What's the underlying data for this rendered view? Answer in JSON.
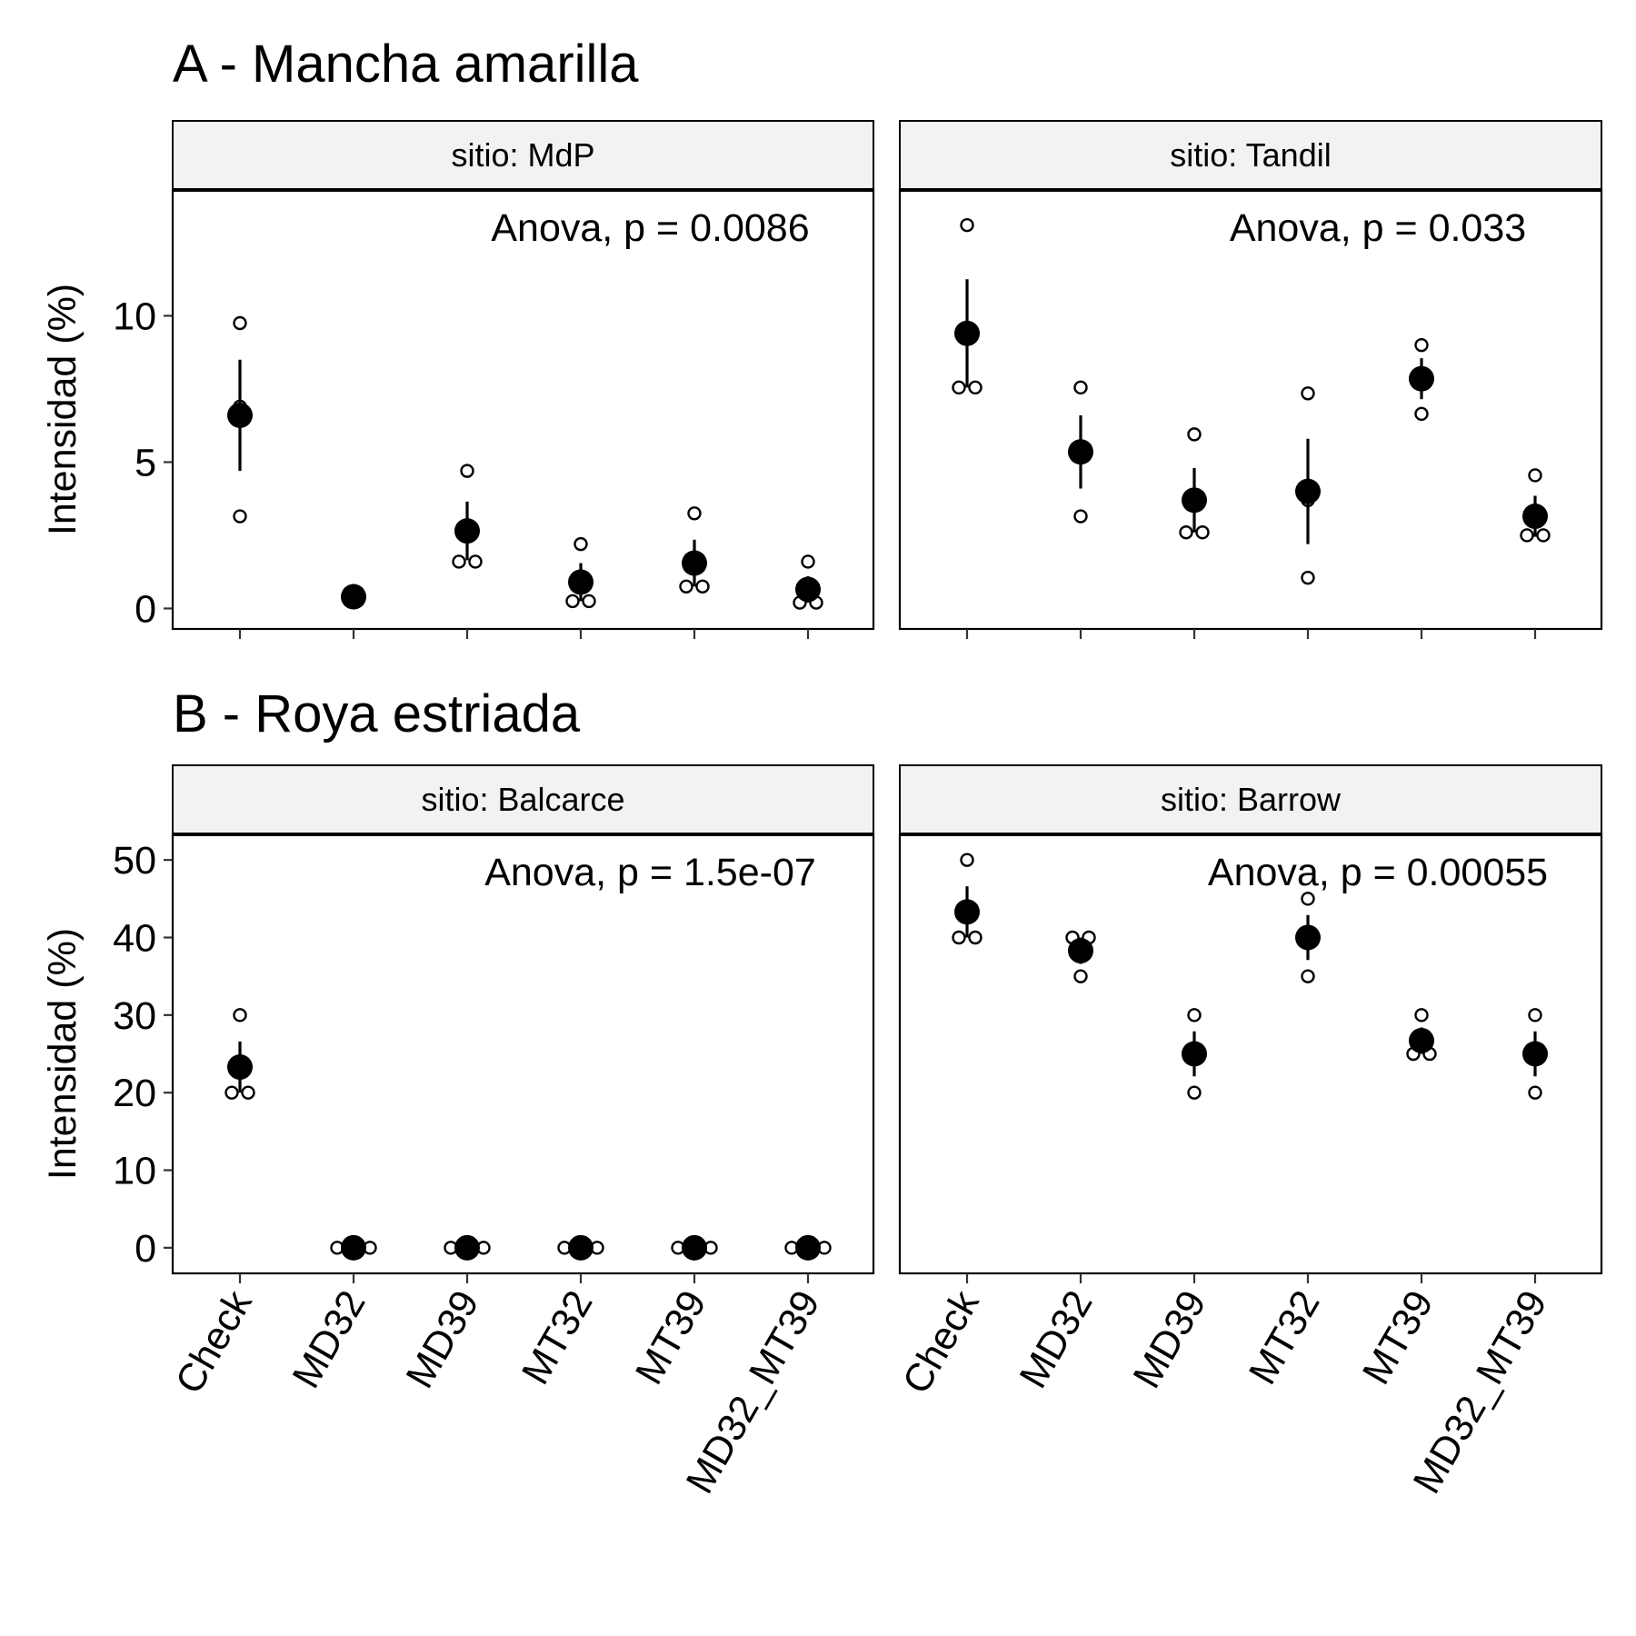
{
  "chart_data": [
    {
      "type": "scatter",
      "title": "A - Mancha amarilla",
      "ylabel": "Intensidad (%)",
      "xlabel": "",
      "categories": [
        "Check",
        "MD32",
        "MD39",
        "MT32",
        "MT39",
        "MD32_MT39"
      ],
      "ylim": [
        -0.7,
        14.3
      ],
      "yticks": [
        0,
        5,
        10
      ],
      "ytick_labels": [
        "0",
        "5",
        "10"
      ],
      "grid": false,
      "panels": [
        {
          "strip": "sitio: MdP",
          "anova": "Anova, p = 0.0086",
          "means": [
            6.6,
            0.4,
            2.65,
            0.9,
            1.55,
            0.65
          ],
          "errors": [
            1.9,
            0.15,
            1.0,
            0.65,
            0.8,
            0.45
          ],
          "points": [
            [
              9.75,
              6.9,
              3.15
            ],
            [
              0.3,
              0.5,
              0.6
            ],
            [
              4.7,
              1.6,
              1.6
            ],
            [
              2.2,
              0.25,
              0.25
            ],
            [
              3.25,
              0.75,
              0.75
            ],
            [
              1.6,
              0.2,
              0.2
            ]
          ]
        },
        {
          "strip": "sitio: Tandil",
          "anova": "Anova, p = 0.033",
          "means": [
            9.4,
            5.35,
            3.7,
            4.0,
            7.85,
            3.15
          ],
          "errors": [
            1.85,
            1.25,
            1.1,
            1.8,
            0.7,
            0.7
          ],
          "points": [
            [
              13.1,
              7.55,
              7.55
            ],
            [
              7.55,
              5.35,
              3.15
            ],
            [
              5.95,
              2.6,
              2.6
            ],
            [
              7.35,
              3.7,
              1.05
            ],
            [
              9.0,
              7.85,
              6.65
            ],
            [
              4.55,
              2.5,
              2.5
            ]
          ]
        }
      ]
    },
    {
      "type": "scatter",
      "title": "B - Roya estriada",
      "ylabel": "Intensidad (%)",
      "xlabel": "",
      "categories": [
        "Check",
        "MD32",
        "MD39",
        "MT32",
        "MT39",
        "MD32_MT39"
      ],
      "ylim": [
        -3.3,
        53.3
      ],
      "yticks": [
        0,
        10,
        20,
        30,
        40,
        50
      ],
      "ytick_labels": [
        "0",
        "10",
        "20",
        "30",
        "40",
        "50"
      ],
      "grid": false,
      "panels": [
        {
          "strip": "sitio: Balcarce",
          "anova": "Anova, p = 1.5e-07",
          "means": [
            23.3,
            0,
            0,
            0,
            0,
            0
          ],
          "errors": [
            3.3,
            0,
            0,
            0,
            0,
            0
          ],
          "points": [
            [
              30,
              20,
              20
            ],
            [
              0,
              0,
              0
            ],
            [
              0,
              0,
              0
            ],
            [
              0,
              0,
              0
            ],
            [
              0,
              0,
              0
            ],
            [
              0,
              0,
              0
            ]
          ]
        },
        {
          "strip": "sitio: Barrow",
          "anova": "Anova, p = 0.00055",
          "means": [
            43.3,
            38.3,
            25,
            40,
            26.7,
            25
          ],
          "errors": [
            3.3,
            1.7,
            2.9,
            2.9,
            1.7,
            2.9
          ],
          "points": [
            [
              50,
              40,
              40
            ],
            [
              40,
              40,
              35
            ],
            [
              30,
              25,
              20
            ],
            [
              45,
              40,
              35
            ],
            [
              30,
              25,
              25
            ],
            [
              30,
              25,
              20
            ]
          ]
        }
      ]
    }
  ]
}
